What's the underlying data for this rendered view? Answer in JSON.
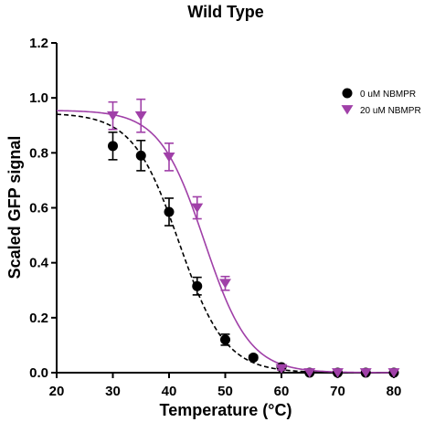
{
  "chart_data": {
    "type": "scatter",
    "title": "Wild Type",
    "xlabel": "Temperature (°C)",
    "ylabel": "Scaled GFP signal",
    "xlim": [
      20,
      80
    ],
    "ylim": [
      0,
      1.2
    ],
    "xticks": [
      20,
      30,
      40,
      50,
      60,
      70,
      80
    ],
    "yticks": [
      0.0,
      0.2,
      0.4,
      0.6,
      0.8,
      1.0,
      1.2
    ],
    "ytick_labels": [
      "0.0",
      "0.2",
      "0.4",
      "0.6",
      "0.8",
      "1.0",
      "1.2"
    ],
    "grid": false,
    "legend_position": "top-right",
    "series": [
      {
        "name": "0 uM NBMPR",
        "marker": "circle",
        "color": "#000000",
        "line_style": "dashed",
        "x": [
          30,
          35,
          40,
          45,
          50,
          55,
          60,
          65,
          70,
          75,
          80
        ],
        "y": [
          0.825,
          0.79,
          0.585,
          0.315,
          0.12,
          0.055,
          0.02,
          0.0,
          0.0,
          0.0,
          0.0
        ],
        "error": [
          0.05,
          0.055,
          0.05,
          0.032,
          0.02,
          0.008,
          0.006,
          0.0,
          0.0,
          0.0,
          0.0
        ],
        "fit": {
          "top": 0.945,
          "bottom": 0.0,
          "tm": 41.8,
          "slope": 4.1
        }
      },
      {
        "name": "20 uM NBMPR",
        "marker": "triangle-down",
        "color": "#a040a8",
        "line_style": "solid",
        "x": [
          30,
          35,
          40,
          45,
          50,
          60,
          65,
          70,
          75,
          80
        ],
        "y": [
          0.935,
          0.935,
          0.785,
          0.6,
          0.325,
          0.015,
          0.0,
          0.0,
          0.0,
          0.0
        ],
        "error": [
          0.05,
          0.06,
          0.05,
          0.04,
          0.025,
          0.005,
          0.0,
          0.0,
          0.0,
          0.0
        ],
        "fit": {
          "top": 0.955,
          "bottom": 0.0,
          "tm": 46.3,
          "slope": 4.0
        }
      }
    ]
  }
}
